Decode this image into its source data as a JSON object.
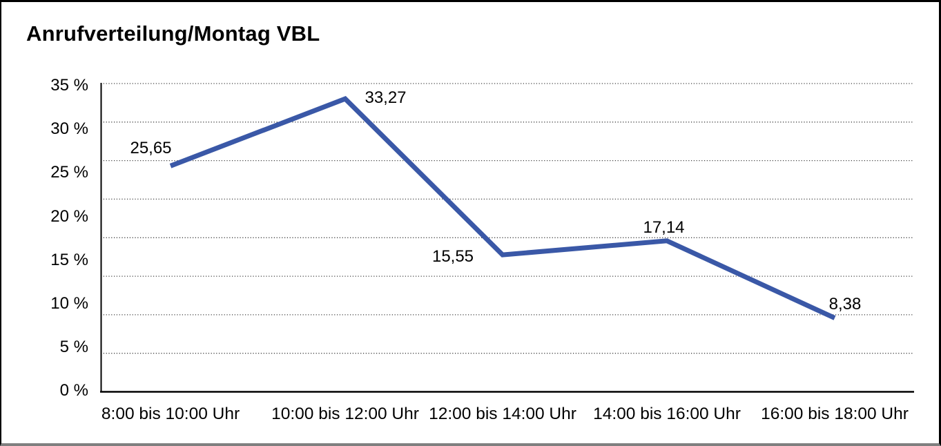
{
  "title": "Anrufverteilung/Montag VBL",
  "chart_data": {
    "type": "line",
    "title": "Anrufverteilung/Montag VBL",
    "categories": [
      "8:00 bis 10:00 Uhr",
      "10:00 bis 12:00 Uhr",
      "12:00 bis 14:00 Uhr",
      "14:00 bis 16:00 Uhr",
      "16:00 bis 18:00 Uhr"
    ],
    "values": [
      25.65,
      33.27,
      15.55,
      17.14,
      8.38
    ],
    "data_labels": [
      "25,65",
      "33,27",
      "15,55",
      "17,14",
      "8,38"
    ],
    "y_axis": {
      "min": 0,
      "max": 35,
      "unit": "%",
      "tick_labels": [
        "35 %",
        "30 %",
        "25 %",
        "20 %",
        "15 %",
        "10 %",
        "5 %",
        "0 %"
      ]
    },
    "x_axis": {
      "tick_labels": [
        "8:00 bis 10:00 Uhr",
        "10:00 bis 12:00 Uhr",
        "12:00 bis 14:00 Uhr",
        "14:00 bis 16:00 Uhr",
        "16:00 bis 18:00 Uhr"
      ]
    },
    "grid": {
      "orientation": "horizontal",
      "style": "dotted",
      "count": 8
    },
    "legend": "none",
    "colors": {
      "line": "#3A58A7",
      "grid": "#3d3d3d",
      "axis": "#000000",
      "text": "#000000",
      "background": "#ffffff",
      "frame_border": "#000000",
      "frame_bottom": "#7f7f7f"
    }
  }
}
